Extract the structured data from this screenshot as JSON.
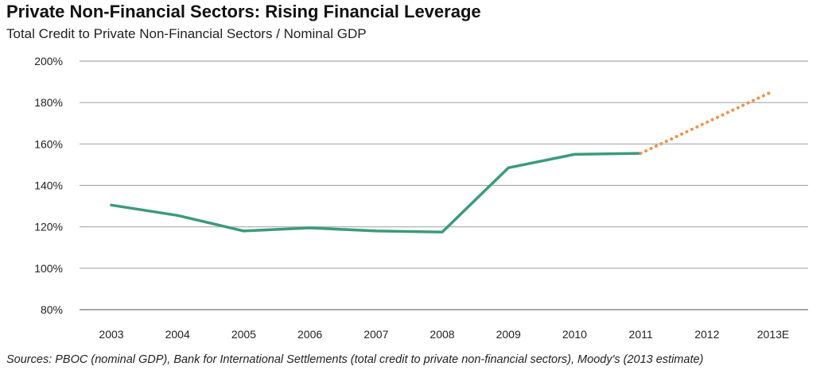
{
  "chart_data": {
    "type": "line",
    "title": "Private Non-Financial Sectors: Rising Financial Leverage",
    "subtitle": "Total Credit to Private Non-Financial Sectors / Nominal GDP",
    "xlabel": "",
    "ylabel": "",
    "categories": [
      "2003",
      "2004",
      "2005",
      "2006",
      "2007",
      "2008",
      "2009",
      "2010",
      "2011",
      "2012",
      "2013E"
    ],
    "ylim": [
      80,
      200
    ],
    "y_ticks": [
      80,
      100,
      120,
      140,
      160,
      180,
      200
    ],
    "y_tick_labels": [
      "80%",
      "100%",
      "120%",
      "140%",
      "160%",
      "180%",
      "200%"
    ],
    "grid": "horizontal",
    "series": [
      {
        "style": "solid",
        "color": "#3a9a7c",
        "points": [
          {
            "x": "2003",
            "y": 130.5
          },
          {
            "x": "2004",
            "y": 125.5
          },
          {
            "x": "2005",
            "y": 118
          },
          {
            "x": "2006",
            "y": 119.5
          },
          {
            "x": "2007",
            "y": 118
          },
          {
            "x": "2008",
            "y": 117.5
          },
          {
            "x": "2009",
            "y": 148.5
          },
          {
            "x": "2010",
            "y": 155
          },
          {
            "x": "2011",
            "y": 155.5
          }
        ]
      },
      {
        "style": "dotted",
        "color": "#f0924a",
        "points": [
          {
            "x": "2011",
            "y": 155.5
          },
          {
            "x": "2013E",
            "y": 185.5
          }
        ]
      }
    ],
    "source": "Sources: PBOC (nominal GDP), Bank for International Settlements (total credit to private non-financial sectors), Moody's (2013 estimate)"
  }
}
